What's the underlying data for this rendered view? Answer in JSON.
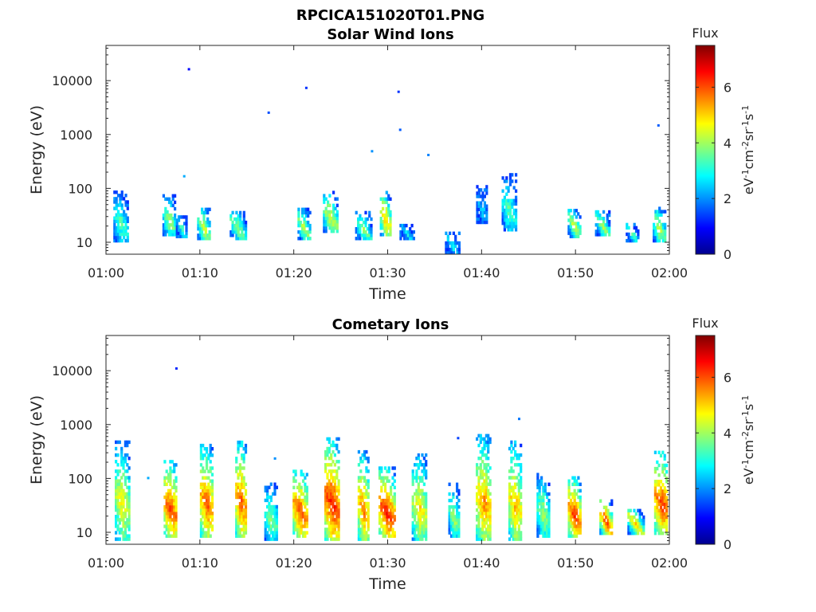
{
  "figure": {
    "title": "RPCICA151020T01.PNG"
  },
  "chart_data": [
    {
      "type": "heatmap",
      "title": "Solar Wind Ions",
      "xlabel": "Time",
      "ylabel": "Energy (eV)",
      "x_ticks": [
        "01:00",
        "01:10",
        "01:20",
        "01:30",
        "01:40",
        "01:50",
        "02:00"
      ],
      "xlim": [
        "01:00",
        "02:00"
      ],
      "y_scale": "log",
      "y_ticks": [
        10,
        100,
        1000,
        10000
      ],
      "y_tick_labels": [
        "10",
        "100",
        "1000",
        "10000"
      ],
      "ylim": [
        6,
        45000
      ],
      "colorbar": {
        "title": "Flux",
        "label": "eV-1cm-2sr-1s-1",
        "range": [
          0,
          7.5
        ],
        "ticks": [
          0,
          2,
          4,
          6
        ],
        "colormap": "jet"
      },
      "bursts": [
        {
          "t": "01:01:30",
          "emin": 10,
          "emax": 85,
          "peak": 3.6
        },
        {
          "t": "01:06:40",
          "emin": 13,
          "emax": 75,
          "peak": 4.2
        },
        {
          "t": "01:08:00",
          "emin": 12,
          "emax": 30,
          "peak": 3.4
        },
        {
          "t": "01:10:20",
          "emin": 11,
          "emax": 42,
          "peak": 4.6
        },
        {
          "t": "01:14:00",
          "emin": 11,
          "emax": 38,
          "peak": 4.0
        },
        {
          "t": "01:21:00",
          "emin": 11,
          "emax": 40,
          "peak": 4.4
        },
        {
          "t": "01:23:50",
          "emin": 15,
          "emax": 85,
          "peak": 4.6
        },
        {
          "t": "01:27:20",
          "emin": 11,
          "emax": 35,
          "peak": 4.0
        },
        {
          "t": "01:29:40",
          "emin": 13,
          "emax": 85,
          "peak": 5.4
        },
        {
          "t": "01:32:00",
          "emin": 11,
          "emax": 20,
          "peak": 3.0
        },
        {
          "t": "01:36:50",
          "emin": 6,
          "emax": 14,
          "peak": 3.0
        },
        {
          "t": "01:40:00",
          "emin": 22,
          "emax": 110,
          "peak": 2.6
        },
        {
          "t": "01:42:50",
          "emin": 16,
          "emax": 170,
          "peak": 3.6
        },
        {
          "t": "01:49:50",
          "emin": 12,
          "emax": 40,
          "peak": 4.4
        },
        {
          "t": "01:52:50",
          "emin": 13,
          "emax": 35,
          "peak": 4.2
        },
        {
          "t": "01:56:00",
          "emin": 10,
          "emax": 20,
          "peak": 3.6
        },
        {
          "t": "01:58:50",
          "emin": 10,
          "emax": 45,
          "peak": 4.4
        }
      ],
      "points": [
        {
          "t": "01:08:50",
          "e": 16000,
          "v": 1.0
        },
        {
          "t": "01:08:20",
          "e": 165,
          "v": 2.2
        },
        {
          "t": "01:17:20",
          "e": 2500,
          "v": 1.5
        },
        {
          "t": "01:21:20",
          "e": 7200,
          "v": 1.3
        },
        {
          "t": "01:28:20",
          "e": 480,
          "v": 2.0
        },
        {
          "t": "01:31:10",
          "e": 6100,
          "v": 1.3
        },
        {
          "t": "01:31:20",
          "e": 1200,
          "v": 1.6
        },
        {
          "t": "01:34:20",
          "e": 410,
          "v": 1.9
        },
        {
          "t": "01:58:50",
          "e": 1450,
          "v": 1.6
        }
      ]
    },
    {
      "type": "heatmap",
      "title": "Cometary Ions",
      "xlabel": "Time",
      "ylabel": "Energy (eV)",
      "x_ticks": [
        "01:00",
        "01:10",
        "01:20",
        "01:30",
        "01:40",
        "01:50",
        "02:00"
      ],
      "xlim": [
        "01:00",
        "02:00"
      ],
      "y_scale": "log",
      "y_ticks": [
        10,
        100,
        1000,
        10000
      ],
      "y_tick_labels": [
        "10",
        "100",
        "1000",
        "10000"
      ],
      "ylim": [
        6,
        45000
      ],
      "colorbar": {
        "title": "Flux",
        "label": "eV-1cm-2sr-1s-1",
        "range": [
          0,
          7.5
        ],
        "ticks": [
          0,
          2,
          4,
          6
        ],
        "colormap": "jet"
      },
      "bursts": [
        {
          "t": "01:01:40",
          "emin": 7,
          "emax": 500,
          "peak": 4.8
        },
        {
          "t": "01:06:50",
          "emin": 8,
          "emax": 200,
          "peak": 6.2
        },
        {
          "t": "01:10:40",
          "emin": 8,
          "emax": 400,
          "peak": 6.0
        },
        {
          "t": "01:14:20",
          "emin": 8,
          "emax": 480,
          "peak": 6.0
        },
        {
          "t": "01:17:30",
          "emin": 7,
          "emax": 80,
          "peak": 4.0
        },
        {
          "t": "01:20:40",
          "emin": 8,
          "emax": 140,
          "peak": 6.2
        },
        {
          "t": "01:24:00",
          "emin": 7,
          "emax": 550,
          "peak": 6.6
        },
        {
          "t": "01:27:20",
          "emin": 7,
          "emax": 300,
          "peak": 5.8
        },
        {
          "t": "01:29:50",
          "emin": 8,
          "emax": 150,
          "peak": 6.6
        },
        {
          "t": "01:33:20",
          "emin": 7,
          "emax": 280,
          "peak": 5.0
        },
        {
          "t": "01:37:00",
          "emin": 8,
          "emax": 80,
          "peak": 4.2
        },
        {
          "t": "01:40:10",
          "emin": 7,
          "emax": 600,
          "peak": 5.6
        },
        {
          "t": "01:43:30",
          "emin": 7,
          "emax": 500,
          "peak": 5.4
        },
        {
          "t": "01:46:30",
          "emin": 8,
          "emax": 120,
          "peak": 4.2
        },
        {
          "t": "01:49:50",
          "emin": 8,
          "emax": 100,
          "peak": 6.4
        },
        {
          "t": "01:53:10",
          "emin": 9,
          "emax": 40,
          "peak": 6.2
        },
        {
          "t": "01:56:20",
          "emin": 9,
          "emax": 25,
          "peak": 5.2
        },
        {
          "t": "01:59:10",
          "emin": 9,
          "emax": 300,
          "peak": 6.2
        }
      ],
      "points": [
        {
          "t": "01:07:30",
          "e": 10800,
          "v": 1.2
        },
        {
          "t": "01:18:00",
          "e": 230,
          "v": 2.0
        },
        {
          "t": "01:37:30",
          "e": 550,
          "v": 1.4
        },
        {
          "t": "01:44:00",
          "e": 1250,
          "v": 1.8
        },
        {
          "t": "01:04:30",
          "e": 100,
          "v": 2.2
        }
      ]
    }
  ]
}
